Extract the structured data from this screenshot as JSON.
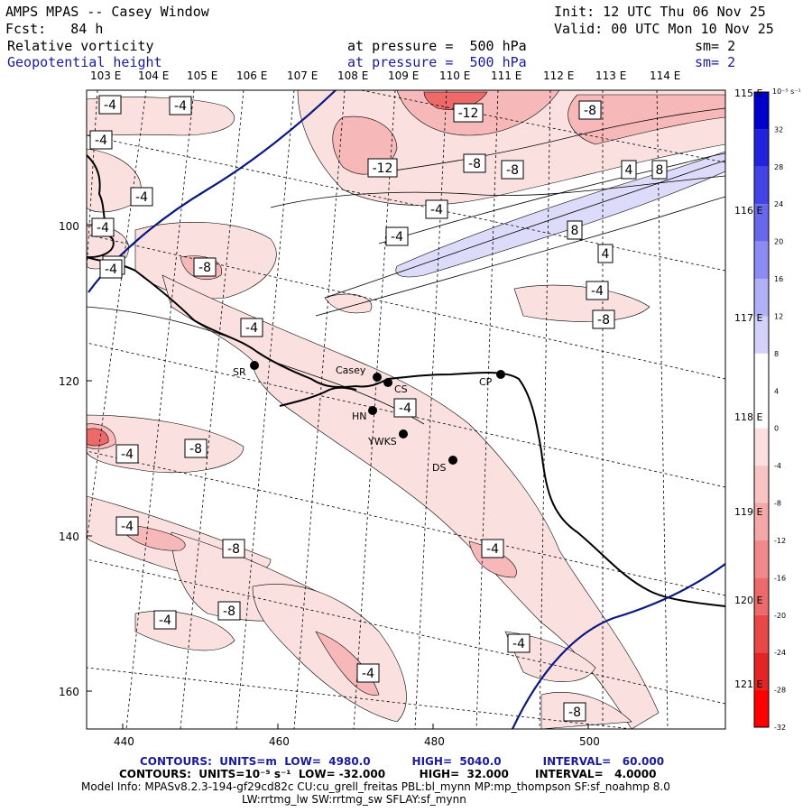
{
  "header": {
    "title": "AMPS MPAS -- Casey Window",
    "init": "Init: 12 UTC Thu 06 Nov 25",
    "fcst": "Fcst:   84 h",
    "valid": "Valid: 00 UTC Mon 10 Nov 25",
    "field1_name": "Relative vorticity",
    "field1_level": "at pressure =  500 hPa",
    "field1_sm": "sm= 2",
    "field2_name": "Geopotential height",
    "field2_level": "at pressure =  500 hPa",
    "field2_sm": "sm= 2"
  },
  "axes": {
    "top_longitudes": [
      "103 E",
      "104 E",
      "105 E",
      "106 E",
      "107 E",
      "108 E",
      "109 E",
      "110 E",
      "111 E",
      "112 E",
      "113 E",
      "114 E"
    ],
    "right_longitudes": [
      "115 E",
      "116 E",
      "117 E",
      "118 E",
      "119 E",
      "120 E",
      "121 E"
    ],
    "x_ticks": [
      "440",
      "460",
      "480",
      "500"
    ],
    "y_ticks": [
      "100",
      "120",
      "140",
      "160"
    ]
  },
  "colorbar": {
    "unit": "10⁻⁵ s⁻¹",
    "labels": [
      "32",
      "28",
      "24",
      "20",
      "16",
      "12",
      "8",
      "4",
      "0",
      "-4",
      "-8",
      "-12",
      "-16",
      "-20",
      "-24",
      "-28",
      "-32"
    ],
    "colors": [
      "#0000cc",
      "#2222dd",
      "#4444e6",
      "#6868ec",
      "#8c8cf2",
      "#b0b0f6",
      "#d2d2fa",
      "#ffffff",
      "#ffffff",
      "#fbe0e0",
      "#f8c4c4",
      "#f4a8a8",
      "#f08a8a",
      "#ec6a6a",
      "#e84848",
      "#e42424",
      "#ff0000"
    ]
  },
  "stations": [
    {
      "code": "SR"
    },
    {
      "code": "Casey"
    },
    {
      "code": "CS"
    },
    {
      "code": "HN"
    },
    {
      "code": "YWKS"
    },
    {
      "code": "DS"
    },
    {
      "code": "CP"
    }
  ],
  "contour_labels": [
    "-4",
    "-4",
    "-4",
    "-4",
    "-4",
    "-8",
    "-4",
    "-12",
    "-12",
    "-8",
    "-8",
    "-8",
    "4",
    "8",
    "8",
    "-4",
    "-4",
    "4",
    "-4",
    "-8",
    "-4",
    "-4",
    "-4",
    "-8",
    "-4",
    "-8",
    "-4",
    "-4",
    "-8",
    "-4",
    "-4",
    "-8",
    "-4"
  ],
  "footer": {
    "line1": "CONTOURS:  UNITS=m  LOW=  4980.0           HIGH=  5040.0           INTERVAL=   60.000",
    "line2": "CONTOURS:  UNITS=10⁻⁵ s⁻¹  LOW= -32.000         HIGH=  32.000       INTERVAL=   4.0000",
    "line3": "Model Info: MPASv8.2.3-194-gf29cd82c CU:cu_grell_freitas PBL:bl_mynn MP:mp_thompson SF:sf_noahmp 8.0",
    "line4": "LW:rrtmg_lw SW:rrtmg_sw SFLAY:sf_mynn"
  }
}
